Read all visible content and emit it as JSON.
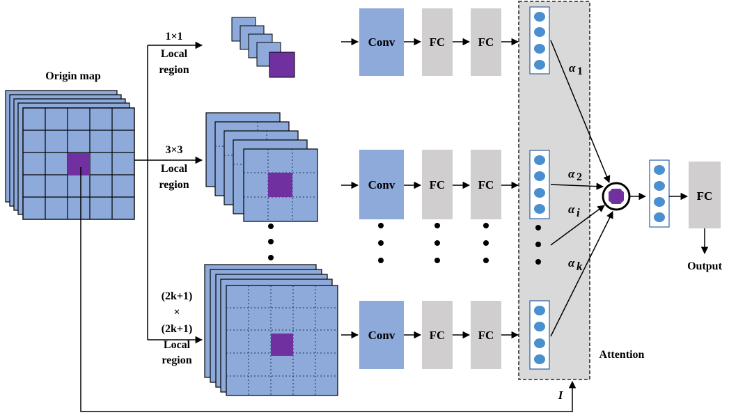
{
  "labels": {
    "origin_map": "Origin map",
    "branch_1": [
      "1×1",
      "Local",
      "region"
    ],
    "branch_2": [
      "3×3",
      "Local",
      "region"
    ],
    "branch_k": [
      "(2k+1)",
      "×",
      "(2k+1)",
      "Local",
      "region"
    ],
    "attention": "Attention",
    "output": "Output",
    "identity": "I"
  },
  "blocks": {
    "conv": "Conv",
    "fc": "FC"
  },
  "weights": {
    "a1": {
      "sym": "α",
      "sub": "1"
    },
    "a2": {
      "sym": "α",
      "sub": "2"
    },
    "ai": {
      "sym": "α",
      "sub": "i"
    },
    "ak": {
      "sym": "α",
      "sub": "k"
    }
  },
  "colors": {
    "map_fill": "#8eaadb",
    "center_fill": "#7030a0",
    "block_gray": "#d0cece",
    "attention_bg": "#d9d9d9",
    "node_fill": "#4a90d0",
    "node_stroke": "#2e5fa3",
    "plus": "#7030a0"
  }
}
